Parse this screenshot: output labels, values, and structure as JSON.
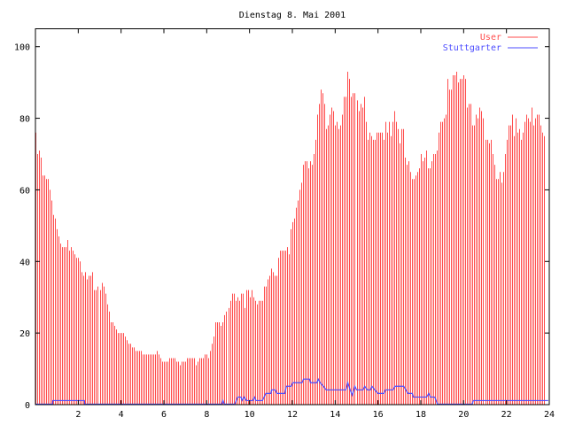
{
  "chart_data": {
    "type": "bar",
    "title": "Dienstag 8. Mai 2001",
    "xlabel": "",
    "ylabel": "",
    "xlim": [
      0,
      24
    ],
    "ylim": [
      0,
      105
    ],
    "x_ticks": [
      "2",
      "4",
      "6",
      "8",
      "10",
      "12",
      "14",
      "16",
      "18",
      "20",
      "22",
      "24"
    ],
    "y_ticks": [
      "0",
      "20",
      "40",
      "60",
      "80",
      "100"
    ],
    "grid": false,
    "legend_position": "top-right",
    "sample_interval_minutes": 5,
    "series": [
      {
        "name": "User",
        "style": "impulses",
        "color": "#ff4c4c",
        "values": [
          76,
          70,
          71,
          69,
          64,
          64,
          63,
          63,
          60,
          57,
          53,
          52,
          49,
          47,
          45,
          44,
          44,
          44,
          46,
          43,
          44,
          43,
          42,
          41,
          41,
          40,
          37,
          36,
          37,
          35,
          36,
          36,
          37,
          32,
          32,
          33,
          32,
          34,
          33,
          31,
          28,
          26,
          23,
          23,
          22,
          21,
          20,
          20,
          20,
          20,
          19,
          18,
          17,
          17,
          16,
          16,
          15,
          15,
          15,
          15,
          14,
          14,
          14,
          14,
          14,
          14,
          14,
          14,
          15,
          14,
          13,
          12,
          12,
          12,
          12,
          13,
          13,
          13,
          13,
          12,
          12,
          11,
          12,
          12,
          12,
          13,
          13,
          13,
          13,
          13,
          11,
          12,
          13,
          13,
          13,
          14,
          14,
          13,
          15,
          17,
          19,
          23,
          23,
          23,
          22,
          23,
          25,
          26,
          27,
          29,
          31,
          31,
          29,
          30,
          29,
          31,
          31,
          27,
          32,
          32,
          30,
          32,
          30,
          29,
          28,
          29,
          29,
          29,
          33,
          33,
          35,
          36,
          38,
          37,
          36,
          36,
          41,
          43,
          43,
          43,
          43,
          44,
          42,
          49,
          51,
          52,
          55,
          57,
          60,
          62,
          67,
          68,
          68,
          66,
          68,
          67,
          70,
          74,
          81,
          84,
          88,
          87,
          84,
          77,
          78,
          81,
          83,
          82,
          78,
          79,
          77,
          78,
          81,
          86,
          86,
          93,
          91,
          86,
          87,
          87,
          85,
          82,
          84,
          83,
          86,
          79,
          74,
          76,
          75,
          74,
          74,
          76,
          76,
          76,
          76,
          74,
          79,
          76,
          79,
          75,
          79,
          82,
          79,
          77,
          73,
          77,
          77,
          69,
          67,
          68,
          65,
          63,
          63,
          64,
          65,
          66,
          70,
          68,
          69,
          71,
          66,
          66,
          68,
          70,
          70,
          71,
          76,
          79,
          79,
          80,
          81,
          91,
          88,
          88,
          92,
          92,
          93,
          90,
          91,
          91,
          92,
          91,
          83,
          84,
          84,
          78,
          78,
          81,
          80,
          83,
          82,
          80,
          74,
          74,
          73,
          74,
          70,
          67,
          63,
          63,
          65,
          62,
          65,
          70,
          74,
          78,
          78,
          81,
          75,
          80,
          76,
          77,
          74,
          76,
          79,
          81,
          80,
          79,
          83,
          78,
          80,
          81,
          81,
          78,
          76,
          75
        ]
      },
      {
        "name": "Stuttgarter",
        "style": "line",
        "color": "#4c4cff",
        "points": [
          [
            0,
            0
          ],
          [
            0.8,
            0
          ],
          [
            0.81,
            1
          ],
          [
            2.29,
            1
          ],
          [
            2.3,
            0
          ],
          [
            8.7,
            0
          ],
          [
            8.76,
            1
          ],
          [
            8.82,
            0
          ],
          [
            9.31,
            0
          ],
          [
            9.45,
            2
          ],
          [
            9.6,
            2
          ],
          [
            9.65,
            1
          ],
          [
            9.75,
            2
          ],
          [
            9.85,
            1
          ],
          [
            10.15,
            1
          ],
          [
            10.23,
            2
          ],
          [
            10.3,
            1
          ],
          [
            10.6,
            1
          ],
          [
            10.76,
            3
          ],
          [
            11.0,
            3
          ],
          [
            11.03,
            4
          ],
          [
            11.2,
            4
          ],
          [
            11.28,
            3
          ],
          [
            11.65,
            3
          ],
          [
            11.72,
            5
          ],
          [
            11.95,
            5
          ],
          [
            12.02,
            6
          ],
          [
            12.45,
            6
          ],
          [
            12.52,
            7
          ],
          [
            12.8,
            7
          ],
          [
            12.85,
            6
          ],
          [
            13.15,
            6
          ],
          [
            13.21,
            7
          ],
          [
            13.3,
            6
          ],
          [
            13.45,
            5
          ],
          [
            13.58,
            4
          ],
          [
            14.5,
            4
          ],
          [
            14.59,
            6
          ],
          [
            14.7,
            4
          ],
          [
            14.8,
            2.5
          ],
          [
            14.92,
            5
          ],
          [
            15.0,
            4
          ],
          [
            15.3,
            4
          ],
          [
            15.38,
            5
          ],
          [
            15.5,
            4
          ],
          [
            15.65,
            4
          ],
          [
            15.72,
            5
          ],
          [
            15.85,
            4
          ],
          [
            16.0,
            3
          ],
          [
            16.27,
            3
          ],
          [
            16.35,
            4
          ],
          [
            16.7,
            4
          ],
          [
            16.8,
            5
          ],
          [
            17.2,
            5
          ],
          [
            17.3,
            4
          ],
          [
            17.4,
            3
          ],
          [
            17.6,
            3
          ],
          [
            17.65,
            2
          ],
          [
            18.27,
            2
          ],
          [
            18.37,
            3
          ],
          [
            18.45,
            2
          ],
          [
            18.65,
            2
          ],
          [
            18.78,
            0
          ],
          [
            20.4,
            0
          ],
          [
            20.45,
            1
          ],
          [
            23.95,
            1
          ]
        ]
      }
    ]
  }
}
